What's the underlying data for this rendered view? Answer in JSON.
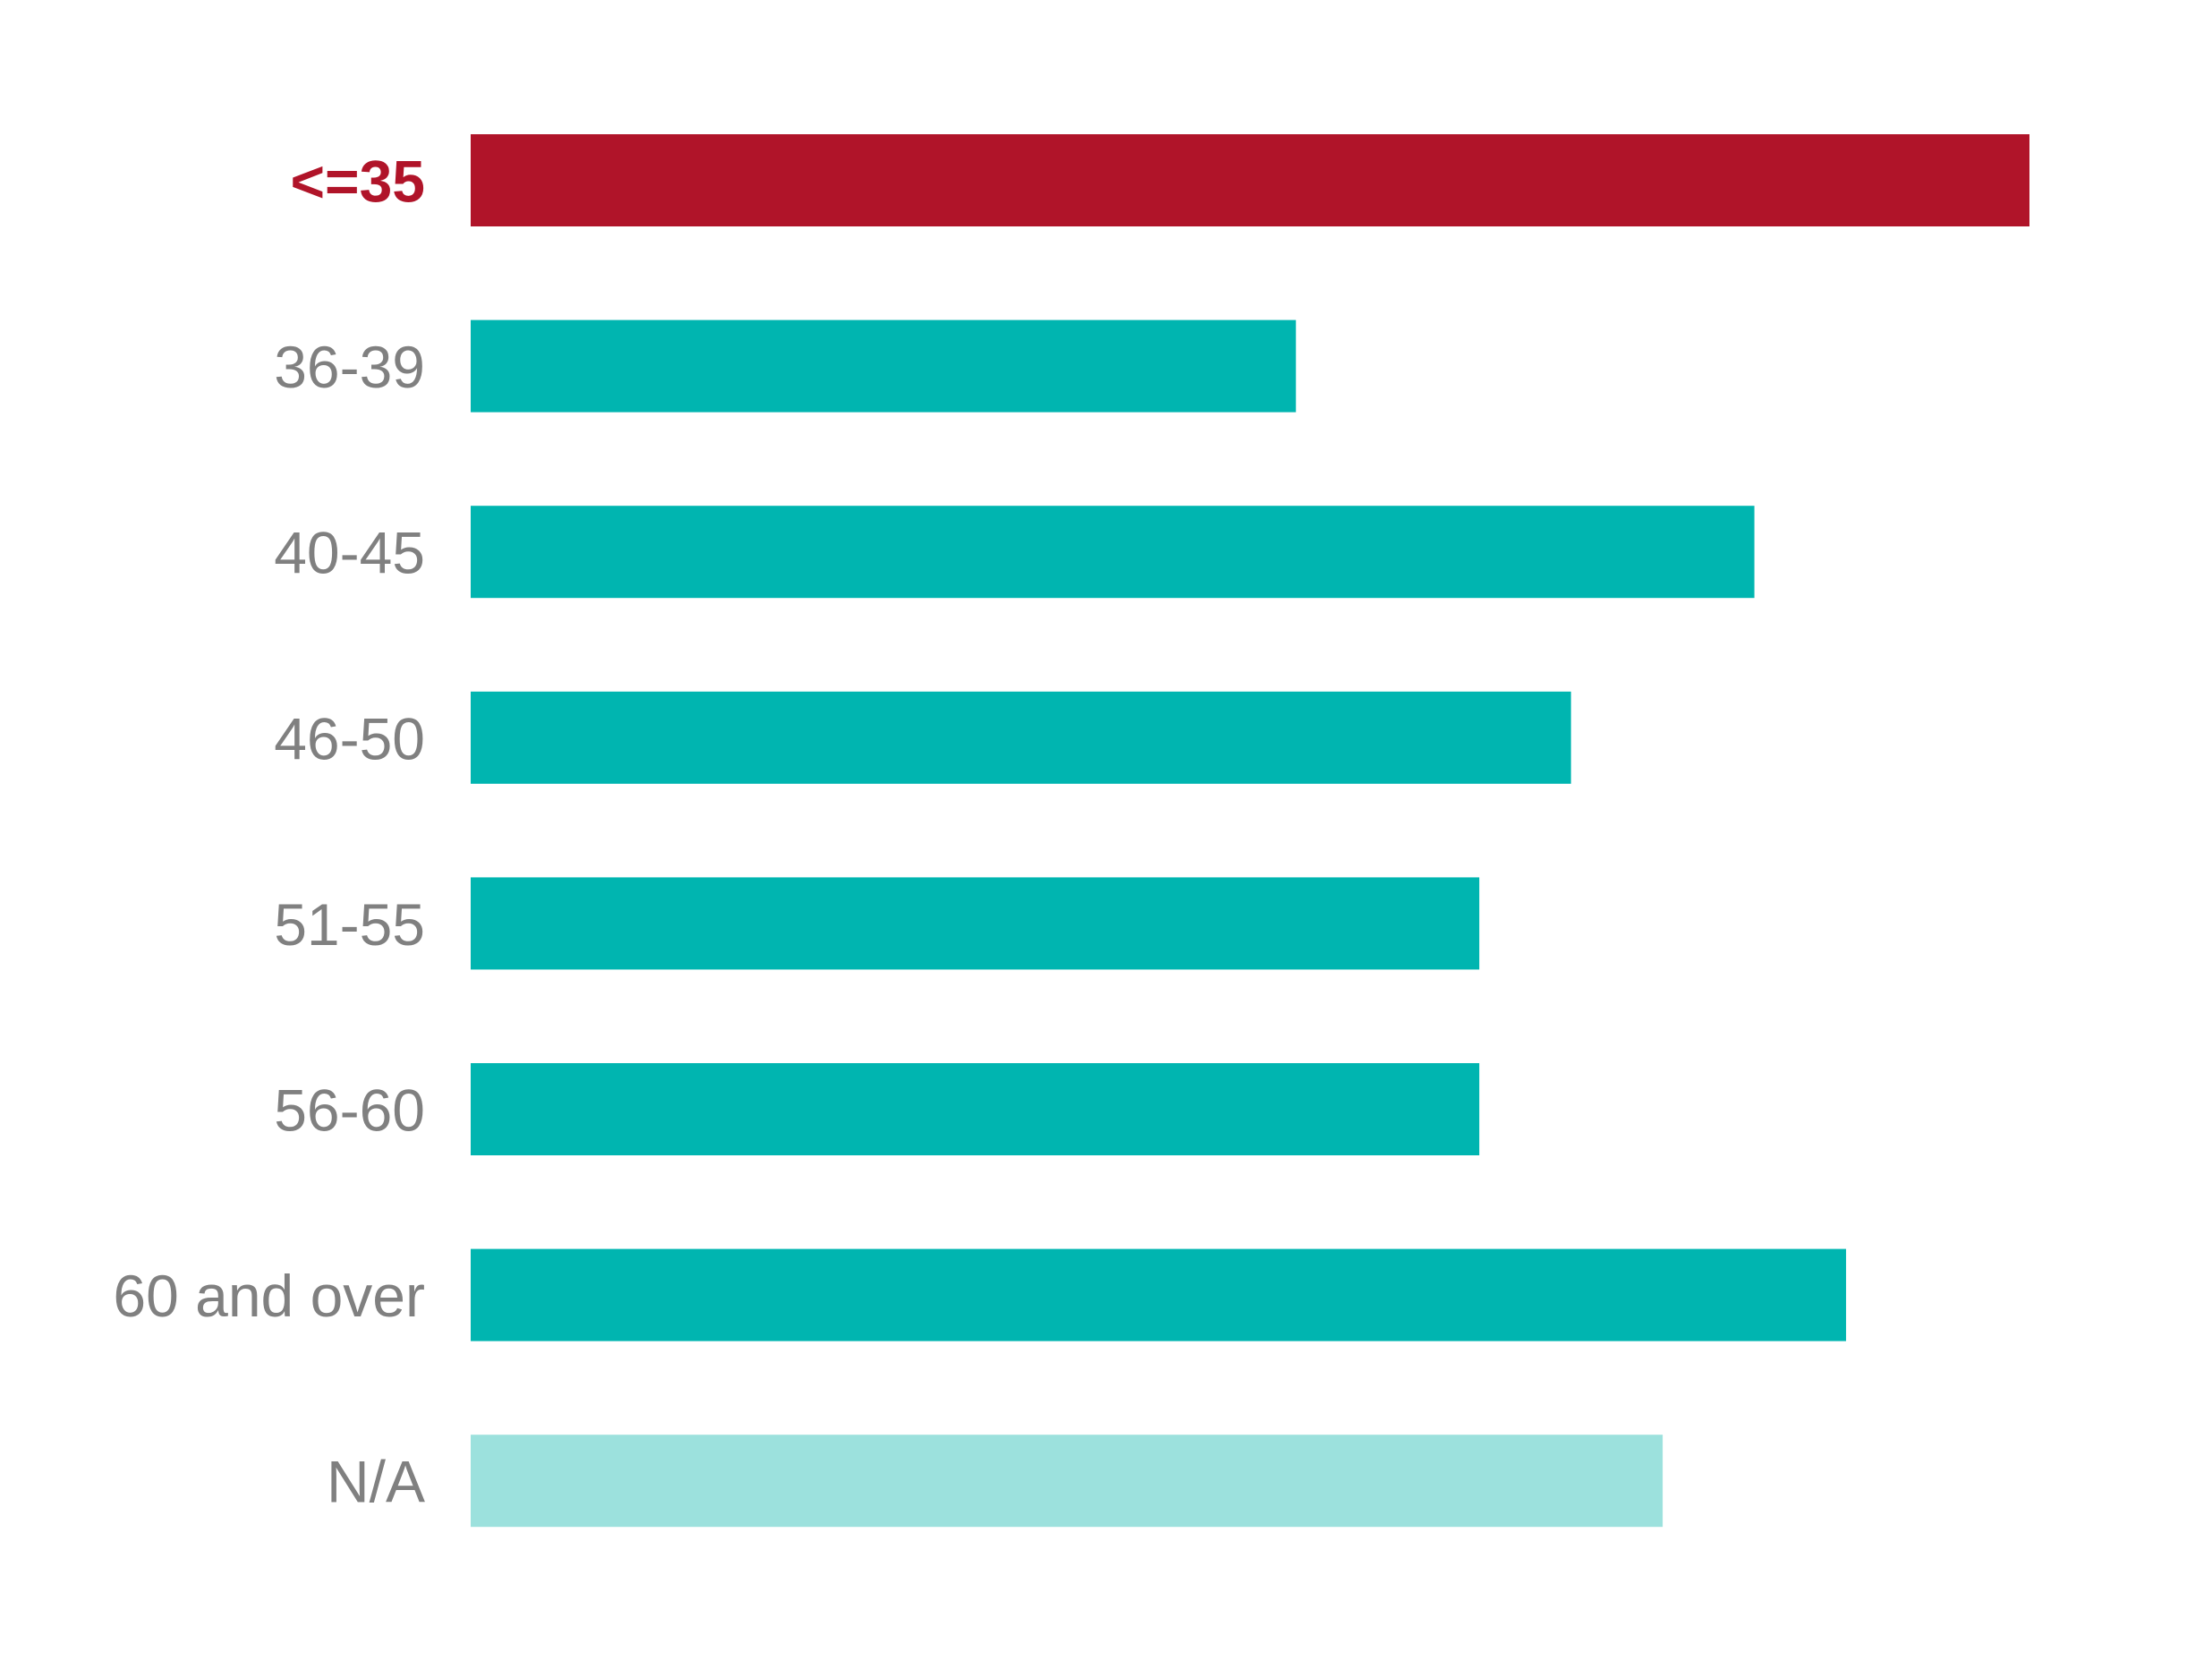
{
  "chart_data": {
    "type": "bar",
    "orientation": "horizontal",
    "title": "",
    "xlabel": "",
    "ylabel": "",
    "categories": [
      "<=35",
      "36-39",
      "40-45",
      "46-50",
      "51-55",
      "56-60",
      "60 and over",
      "N/A"
    ],
    "values": [
      17,
      9,
      14,
      12,
      11,
      11,
      15,
      13
    ],
    "value_note": "relative values estimated from bar lengths; no axis shown",
    "xlim": [
      0,
      17
    ],
    "grid": false,
    "highlight_category": "<=35",
    "colors": {
      "highlight": "#B01429",
      "default": "#00B5B0",
      "na": "#9CE1DD",
      "label": "#808080"
    }
  }
}
